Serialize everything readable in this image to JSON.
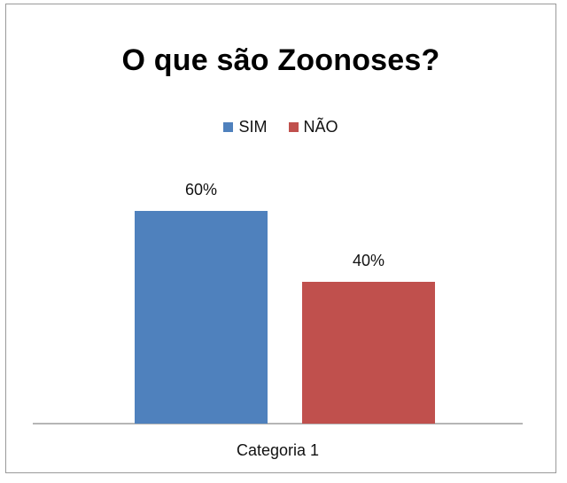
{
  "chart_data": {
    "type": "bar",
    "title": "O que são Zoonoses?",
    "categories": [
      "Categoria 1"
    ],
    "series": [
      {
        "name": "SIM",
        "values": [
          60
        ],
        "label": "60%",
        "color": "#4F81BD"
      },
      {
        "name": "NÃO",
        "values": [
          40
        ],
        "label": "40%",
        "color": "#C0504D"
      }
    ],
    "ylim": [
      0,
      100
    ],
    "unit": "%",
    "grid": false,
    "legend_position": "top"
  }
}
